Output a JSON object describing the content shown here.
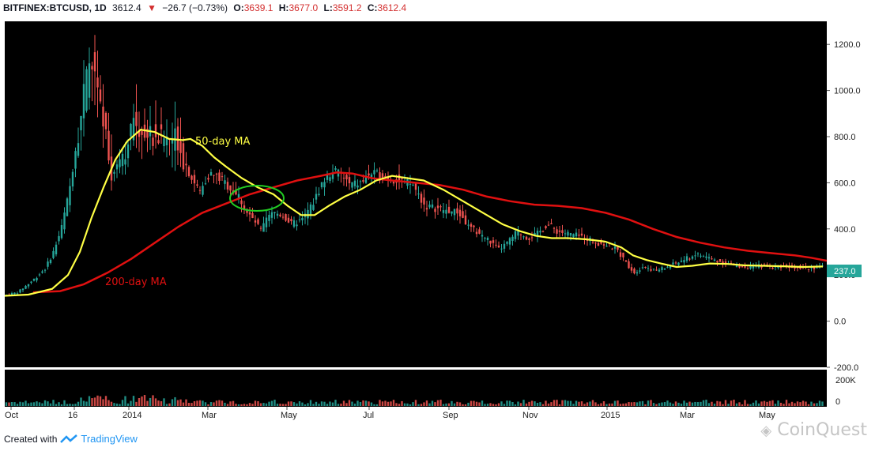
{
  "header": {
    "symbol": "BITFINEX:BTCUSD, 1D",
    "last": "3612.4",
    "arrow": "▼",
    "change": "−26.7 (−0.73%)",
    "open_label": "O:",
    "open": "3639.1",
    "high_label": "H:",
    "high": "3677.0",
    "low_label": "L:",
    "low": "3591.2",
    "close_label": "C:",
    "close": "3612.4"
  },
  "footer": {
    "created_with": "Created with",
    "brand": "TradingView"
  },
  "watermark": "CoinQuest",
  "colors": {
    "background": "#000000",
    "up": "#26a69a",
    "down": "#ef5350",
    "ma50": "#ffff44",
    "ma200": "#e01010",
    "highlight": "#22cc22",
    "price_tag": "#26a69a"
  },
  "chart_data": {
    "type": "candlestick",
    "period": "Oct 2013 – Jun 2015",
    "ylim": [
      -200,
      1300
    ],
    "y_ticks": [
      "1200.0",
      "1000.0",
      "800.0",
      "600.0",
      "400.0",
      "200.0",
      "0.0",
      "-200.0"
    ],
    "x_ticks": [
      "Oct",
      "16",
      "2014",
      "Mar",
      "May",
      "Jul",
      "Sep",
      "Nov",
      "2015",
      "Mar",
      "May"
    ],
    "price_tag": "237.0",
    "volume_ticks": [
      "200K",
      "0"
    ],
    "annotations": {
      "ma50": "50-day MA",
      "ma200": "200-day MA"
    },
    "price_path": [
      [
        0,
        110
      ],
      [
        20,
        125
      ],
      [
        40,
        180
      ],
      [
        55,
        230
      ],
      [
        65,
        300
      ],
      [
        75,
        400
      ],
      [
        85,
        560
      ],
      [
        95,
        800
      ],
      [
        105,
        1000
      ],
      [
        112,
        1130
      ],
      [
        118,
        1050
      ],
      [
        125,
        900
      ],
      [
        132,
        800
      ],
      [
        140,
        620
      ],
      [
        148,
        700
      ],
      [
        158,
        760
      ],
      [
        168,
        870
      ],
      [
        176,
        830
      ],
      [
        186,
        810
      ],
      [
        198,
        800
      ],
      [
        210,
        790
      ],
      [
        222,
        800
      ],
      [
        230,
        700
      ],
      [
        240,
        620
      ],
      [
        250,
        560
      ],
      [
        262,
        640
      ],
      [
        275,
        620
      ],
      [
        288,
        580
      ],
      [
        300,
        540
      ],
      [
        310,
        470
      ],
      [
        320,
        430
      ],
      [
        328,
        390
      ],
      [
        336,
        450
      ],
      [
        345,
        470
      ],
      [
        355,
        460
      ],
      [
        366,
        420
      ],
      [
        380,
        440
      ],
      [
        395,
        520
      ],
      [
        405,
        600
      ],
      [
        418,
        650
      ],
      [
        428,
        640
      ],
      [
        440,
        590
      ],
      [
        455,
        600
      ],
      [
        465,
        640
      ],
      [
        478,
        630
      ],
      [
        492,
        620
      ],
      [
        505,
        610
      ],
      [
        520,
        590
      ],
      [
        535,
        500
      ],
      [
        548,
        490
      ],
      [
        562,
        480
      ],
      [
        578,
        470
      ],
      [
        590,
        410
      ],
      [
        604,
        380
      ],
      [
        616,
        350
      ],
      [
        628,
        310
      ],
      [
        640,
        340
      ],
      [
        652,
        390
      ],
      [
        665,
        360
      ],
      [
        678,
        380
      ],
      [
        690,
        420
      ],
      [
        702,
        390
      ],
      [
        715,
        380
      ],
      [
        728,
        370
      ],
      [
        740,
        360
      ],
      [
        752,
        340
      ],
      [
        765,
        330
      ],
      [
        778,
        310
      ],
      [
        790,
        250
      ],
      [
        800,
        210
      ],
      [
        812,
        240
      ],
      [
        825,
        220
      ],
      [
        838,
        230
      ],
      [
        852,
        250
      ],
      [
        865,
        270
      ],
      [
        878,
        290
      ],
      [
        890,
        280
      ],
      [
        905,
        260
      ],
      [
        918,
        250
      ],
      [
        930,
        240
      ],
      [
        945,
        235
      ],
      [
        960,
        240
      ],
      [
        975,
        235
      ],
      [
        990,
        240
      ],
      [
        1005,
        235
      ],
      [
        1020,
        232
      ],
      [
        1035,
        234
      ]
    ],
    "ma50_path": [
      [
        0,
        110
      ],
      [
        30,
        115
      ],
      [
        60,
        140
      ],
      [
        80,
        200
      ],
      [
        95,
        300
      ],
      [
        110,
        450
      ],
      [
        125,
        580
      ],
      [
        140,
        700
      ],
      [
        155,
        780
      ],
      [
        172,
        830
      ],
      [
        190,
        820
      ],
      [
        208,
        790
      ],
      [
        225,
        785
      ],
      [
        235,
        790
      ],
      [
        250,
        760
      ],
      [
        265,
        710
      ],
      [
        280,
        670
      ],
      [
        300,
        620
      ],
      [
        320,
        580
      ],
      [
        340,
        550
      ],
      [
        358,
        500
      ],
      [
        375,
        460
      ],
      [
        392,
        460
      ],
      [
        410,
        500
      ],
      [
        430,
        540
      ],
      [
        450,
        570
      ],
      [
        470,
        610
      ],
      [
        490,
        630
      ],
      [
        510,
        620
      ],
      [
        530,
        610
      ],
      [
        555,
        570
      ],
      [
        580,
        520
      ],
      [
        605,
        470
      ],
      [
        630,
        420
      ],
      [
        652,
        390
      ],
      [
        672,
        370
      ],
      [
        692,
        360
      ],
      [
        712,
        360
      ],
      [
        735,
        355
      ],
      [
        760,
        345
      ],
      [
        780,
        320
      ],
      [
        795,
        285
      ],
      [
        812,
        265
      ],
      [
        830,
        250
      ],
      [
        850,
        235
      ],
      [
        870,
        240
      ],
      [
        892,
        250
      ],
      [
        915,
        248
      ],
      [
        935,
        242
      ],
      [
        960,
        240
      ],
      [
        985,
        238
      ],
      [
        1010,
        235
      ],
      [
        1035,
        237
      ]
    ],
    "ma200_path": [
      [
        36,
        125
      ],
      [
        70,
        130
      ],
      [
        100,
        160
      ],
      [
        130,
        210
      ],
      [
        160,
        270
      ],
      [
        190,
        340
      ],
      [
        220,
        410
      ],
      [
        250,
        470
      ],
      [
        280,
        510
      ],
      [
        310,
        550
      ],
      [
        340,
        580
      ],
      [
        370,
        610
      ],
      [
        400,
        630
      ],
      [
        420,
        645
      ],
      [
        440,
        640
      ],
      [
        465,
        620
      ],
      [
        490,
        610
      ],
      [
        520,
        600
      ],
      [
        550,
        590
      ],
      [
        580,
        570
      ],
      [
        610,
        540
      ],
      [
        640,
        520
      ],
      [
        670,
        505
      ],
      [
        700,
        500
      ],
      [
        730,
        490
      ],
      [
        760,
        470
      ],
      [
        790,
        440
      ],
      [
        820,
        400
      ],
      [
        850,
        365
      ],
      [
        880,
        340
      ],
      [
        910,
        320
      ],
      [
        940,
        305
      ],
      [
        970,
        295
      ],
      [
        1000,
        285
      ],
      [
        1020,
        275
      ],
      [
        1040,
        262
      ]
    ]
  }
}
